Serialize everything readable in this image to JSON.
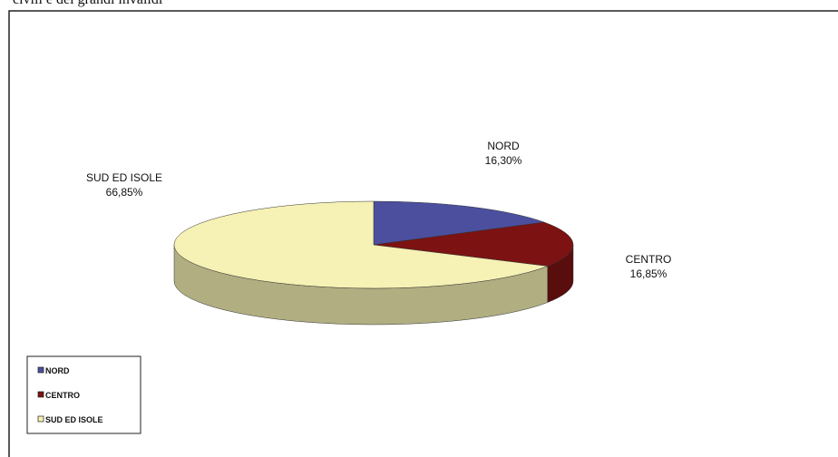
{
  "caption": "civili e dei grandi invalidi",
  "chart_data": {
    "type": "pie3d",
    "categories": [
      "NORD",
      "CENTRO",
      "SUD ED ISOLE"
    ],
    "values": [
      16.3,
      16.85,
      66.85
    ],
    "value_labels": [
      "16,30%",
      "16,85%",
      "66,85%"
    ],
    "colors": [
      "#4b4f9e",
      "#7c1212",
      "#f6f1b4"
    ],
    "legend": "bottom-left"
  }
}
